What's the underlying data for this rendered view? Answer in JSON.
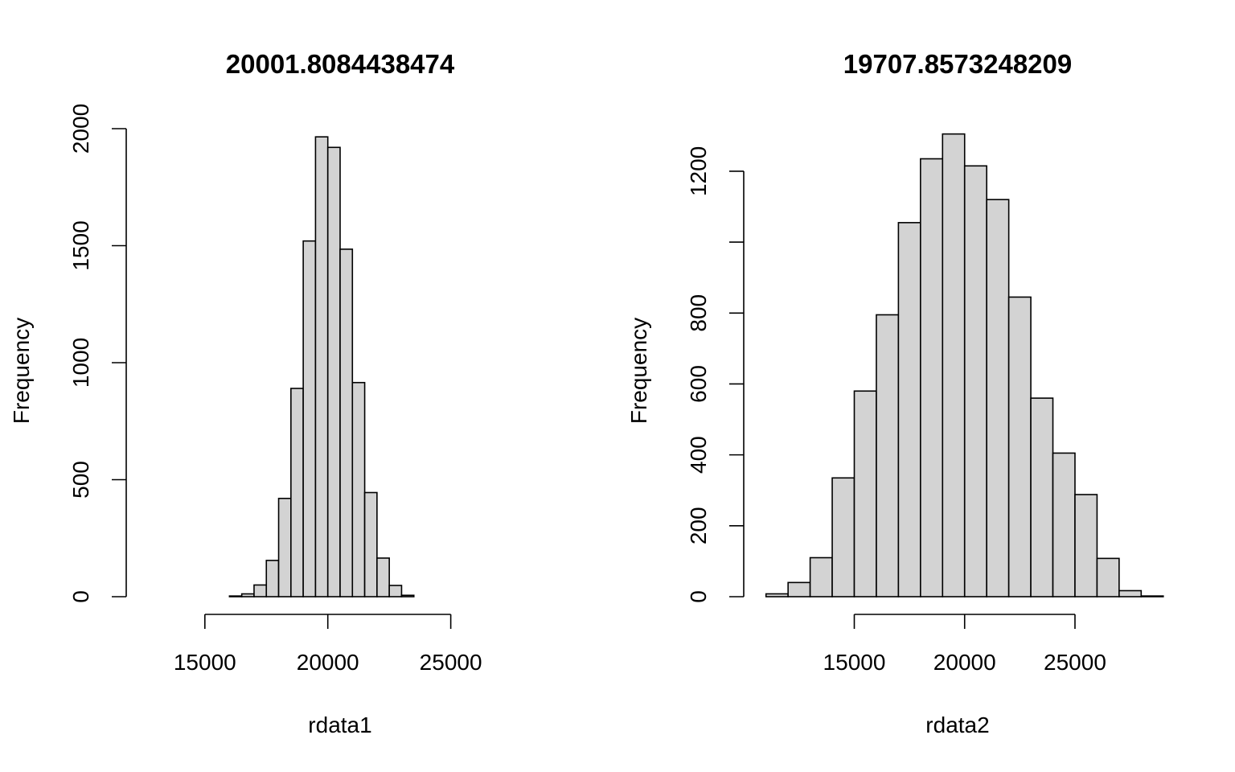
{
  "chart_data": [
    {
      "type": "histogram",
      "title": "20001.8084438474",
      "xlabel": "rdata1",
      "ylabel": "Frequency",
      "bins": [
        {
          "x0": 16000,
          "x1": 16500,
          "count": 3
        },
        {
          "x0": 16500,
          "x1": 17000,
          "count": 12
        },
        {
          "x0": 17000,
          "x1": 17500,
          "count": 50
        },
        {
          "x0": 17500,
          "x1": 18000,
          "count": 155
        },
        {
          "x0": 18000,
          "x1": 18500,
          "count": 420
        },
        {
          "x0": 18500,
          "x1": 19000,
          "count": 890
        },
        {
          "x0": 19000,
          "x1": 19500,
          "count": 1520
        },
        {
          "x0": 19500,
          "x1": 20000,
          "count": 1965
        },
        {
          "x0": 20000,
          "x1": 20500,
          "count": 1920
        },
        {
          "x0": 20500,
          "x1": 21000,
          "count": 1485
        },
        {
          "x0": 21000,
          "x1": 21500,
          "count": 915
        },
        {
          "x0": 21500,
          "x1": 22000,
          "count": 445
        },
        {
          "x0": 22000,
          "x1": 22500,
          "count": 165
        },
        {
          "x0": 22500,
          "x1": 23000,
          "count": 48
        },
        {
          "x0": 23000,
          "x1": 23500,
          "count": 6
        }
      ],
      "xlim": [
        11900,
        29100
      ],
      "ylim": [
        0,
        2000
      ],
      "xticks": [
        15000,
        20000,
        25000
      ],
      "yticks": [
        0,
        500,
        1000,
        1500,
        2000
      ],
      "xtick_labels": [
        "15000",
        "20000",
        "25000"
      ],
      "ytick_labels": [
        "0",
        "500",
        "1000",
        "1500",
        "2000"
      ]
    },
    {
      "type": "histogram",
      "title": "19707.8573248209",
      "xlabel": "rdata2",
      "ylabel": "Frequency",
      "bins": [
        {
          "x0": 11000,
          "x1": 12000,
          "count": 8
        },
        {
          "x0": 12000,
          "x1": 13000,
          "count": 40
        },
        {
          "x0": 13000,
          "x1": 14000,
          "count": 110
        },
        {
          "x0": 14000,
          "x1": 15000,
          "count": 335
        },
        {
          "x0": 15000,
          "x1": 16000,
          "count": 580
        },
        {
          "x0": 16000,
          "x1": 17000,
          "count": 795
        },
        {
          "x0": 17000,
          "x1": 18000,
          "count": 1055
        },
        {
          "x0": 18000,
          "x1": 19000,
          "count": 1235
        },
        {
          "x0": 19000,
          "x1": 20000,
          "count": 1305
        },
        {
          "x0": 20000,
          "x1": 21000,
          "count": 1215
        },
        {
          "x0": 21000,
          "x1": 22000,
          "count": 1120
        },
        {
          "x0": 22000,
          "x1": 23000,
          "count": 845
        },
        {
          "x0": 23000,
          "x1": 24000,
          "count": 560
        },
        {
          "x0": 24000,
          "x1": 25000,
          "count": 405
        },
        {
          "x0": 25000,
          "x1": 26000,
          "count": 288
        },
        {
          "x0": 26000,
          "x1": 27000,
          "count": 108
        },
        {
          "x0": 27000,
          "x1": 28000,
          "count": 17
        },
        {
          "x0": 28000,
          "x1": 29000,
          "count": 2
        }
      ],
      "xlim": [
        10100,
        29300
      ],
      "ylim": [
        0,
        1320
      ],
      "xticks": [
        15000,
        20000,
        25000
      ],
      "yticks": [
        0,
        200,
        400,
        600,
        800,
        1000,
        1200
      ],
      "xtick_labels": [
        "15000",
        "20000",
        "25000"
      ],
      "ytick_labels": [
        "0",
        "200",
        "400",
        "600",
        "800",
        "",
        "1200"
      ]
    }
  ]
}
